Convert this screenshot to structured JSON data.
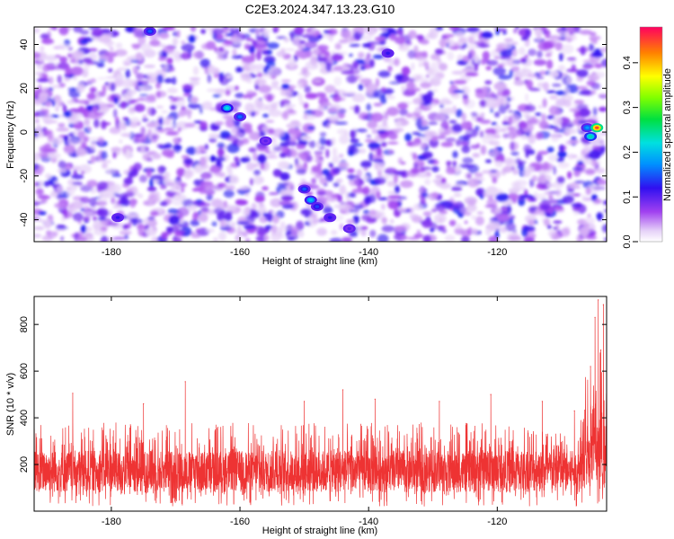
{
  "title": "C2E3.2024.347.13.23.G10",
  "chart_data": [
    {
      "type": "heatmap",
      "xlabel": "Height of straight line (km)",
      "ylabel": "Frequency (Hz)",
      "xlim": [
        -192,
        -103
      ],
      "ylim": [
        -50,
        48
      ],
      "x_ticks": [
        "-180",
        "-160",
        "-140",
        "-120"
      ],
      "x_tick_values": [
        -180,
        -160,
        -140,
        -120
      ],
      "y_ticks": [
        "-40",
        "-20",
        "0",
        "20",
        "40"
      ],
      "y_tick_values": [
        -40,
        -20,
        0,
        20,
        40
      ],
      "colorbar": {
        "label": "Normalized spectral amplitude",
        "range": [
          0,
          0.48
        ],
        "ticks": [
          "0.0",
          "0.1",
          "0.2",
          "0.3",
          "0.4"
        ],
        "tick_values": [
          0.0,
          0.1,
          0.2,
          0.3,
          0.4
        ]
      },
      "features": [
        {
          "x": -162,
          "y": 11,
          "value": 0.22
        },
        {
          "x": -160,
          "y": 7,
          "value": 0.16
        },
        {
          "x": -150,
          "y": -26,
          "value": 0.15
        },
        {
          "x": -149,
          "y": -31,
          "value": 0.2
        },
        {
          "x": -148,
          "y": -34,
          "value": 0.14
        },
        {
          "x": -146,
          "y": -39,
          "value": 0.12
        },
        {
          "x": -143,
          "y": -44,
          "value": 0.1
        },
        {
          "x": -156,
          "y": -4,
          "value": 0.1
        },
        {
          "x": -174,
          "y": 46,
          "value": 0.15
        },
        {
          "x": -137,
          "y": 36,
          "value": 0.12
        },
        {
          "x": -106,
          "y": 2,
          "value": 0.18
        },
        {
          "x": -104.5,
          "y": 2,
          "value": 0.45
        },
        {
          "x": -105.5,
          "y": -2,
          "value": 0.24
        },
        {
          "x": -179,
          "y": -39,
          "value": 0.12
        }
      ]
    },
    {
      "type": "line",
      "xlabel": "Height of straight line (km)",
      "ylabel": "SNR (10 * v/v)",
      "xlim": [
        -192,
        -103
      ],
      "ylim": [
        0,
        920
      ],
      "x_ticks": [
        "-180",
        "-160",
        "-140",
        "-120"
      ],
      "x_tick_values": [
        -180,
        -160,
        -140,
        -120
      ],
      "y_ticks": [
        "200",
        "400",
        "600",
        "800"
      ],
      "y_tick_values": [
        200,
        400,
        600,
        800
      ],
      "series": [
        {
          "color": "#ee3333",
          "baseline": 170,
          "noise_range": [
            20,
            380
          ],
          "x": [
            -192,
            -186,
            -179,
            -175,
            -168.5,
            -160,
            -150,
            -144,
            -139,
            -129,
            -121,
            -113,
            -108,
            -105.5,
            -104.8,
            -104.3,
            -103.9,
            -103.5
          ],
          "y": [
            200,
            505,
            190,
            460,
            555,
            180,
            470,
            520,
            480,
            470,
            500,
            470,
            430,
            620,
            830,
            905,
            690,
            885
          ]
        }
      ]
    }
  ],
  "colors": {
    "heatmap_background": "#ffffff",
    "line_color": "#ee3333"
  }
}
